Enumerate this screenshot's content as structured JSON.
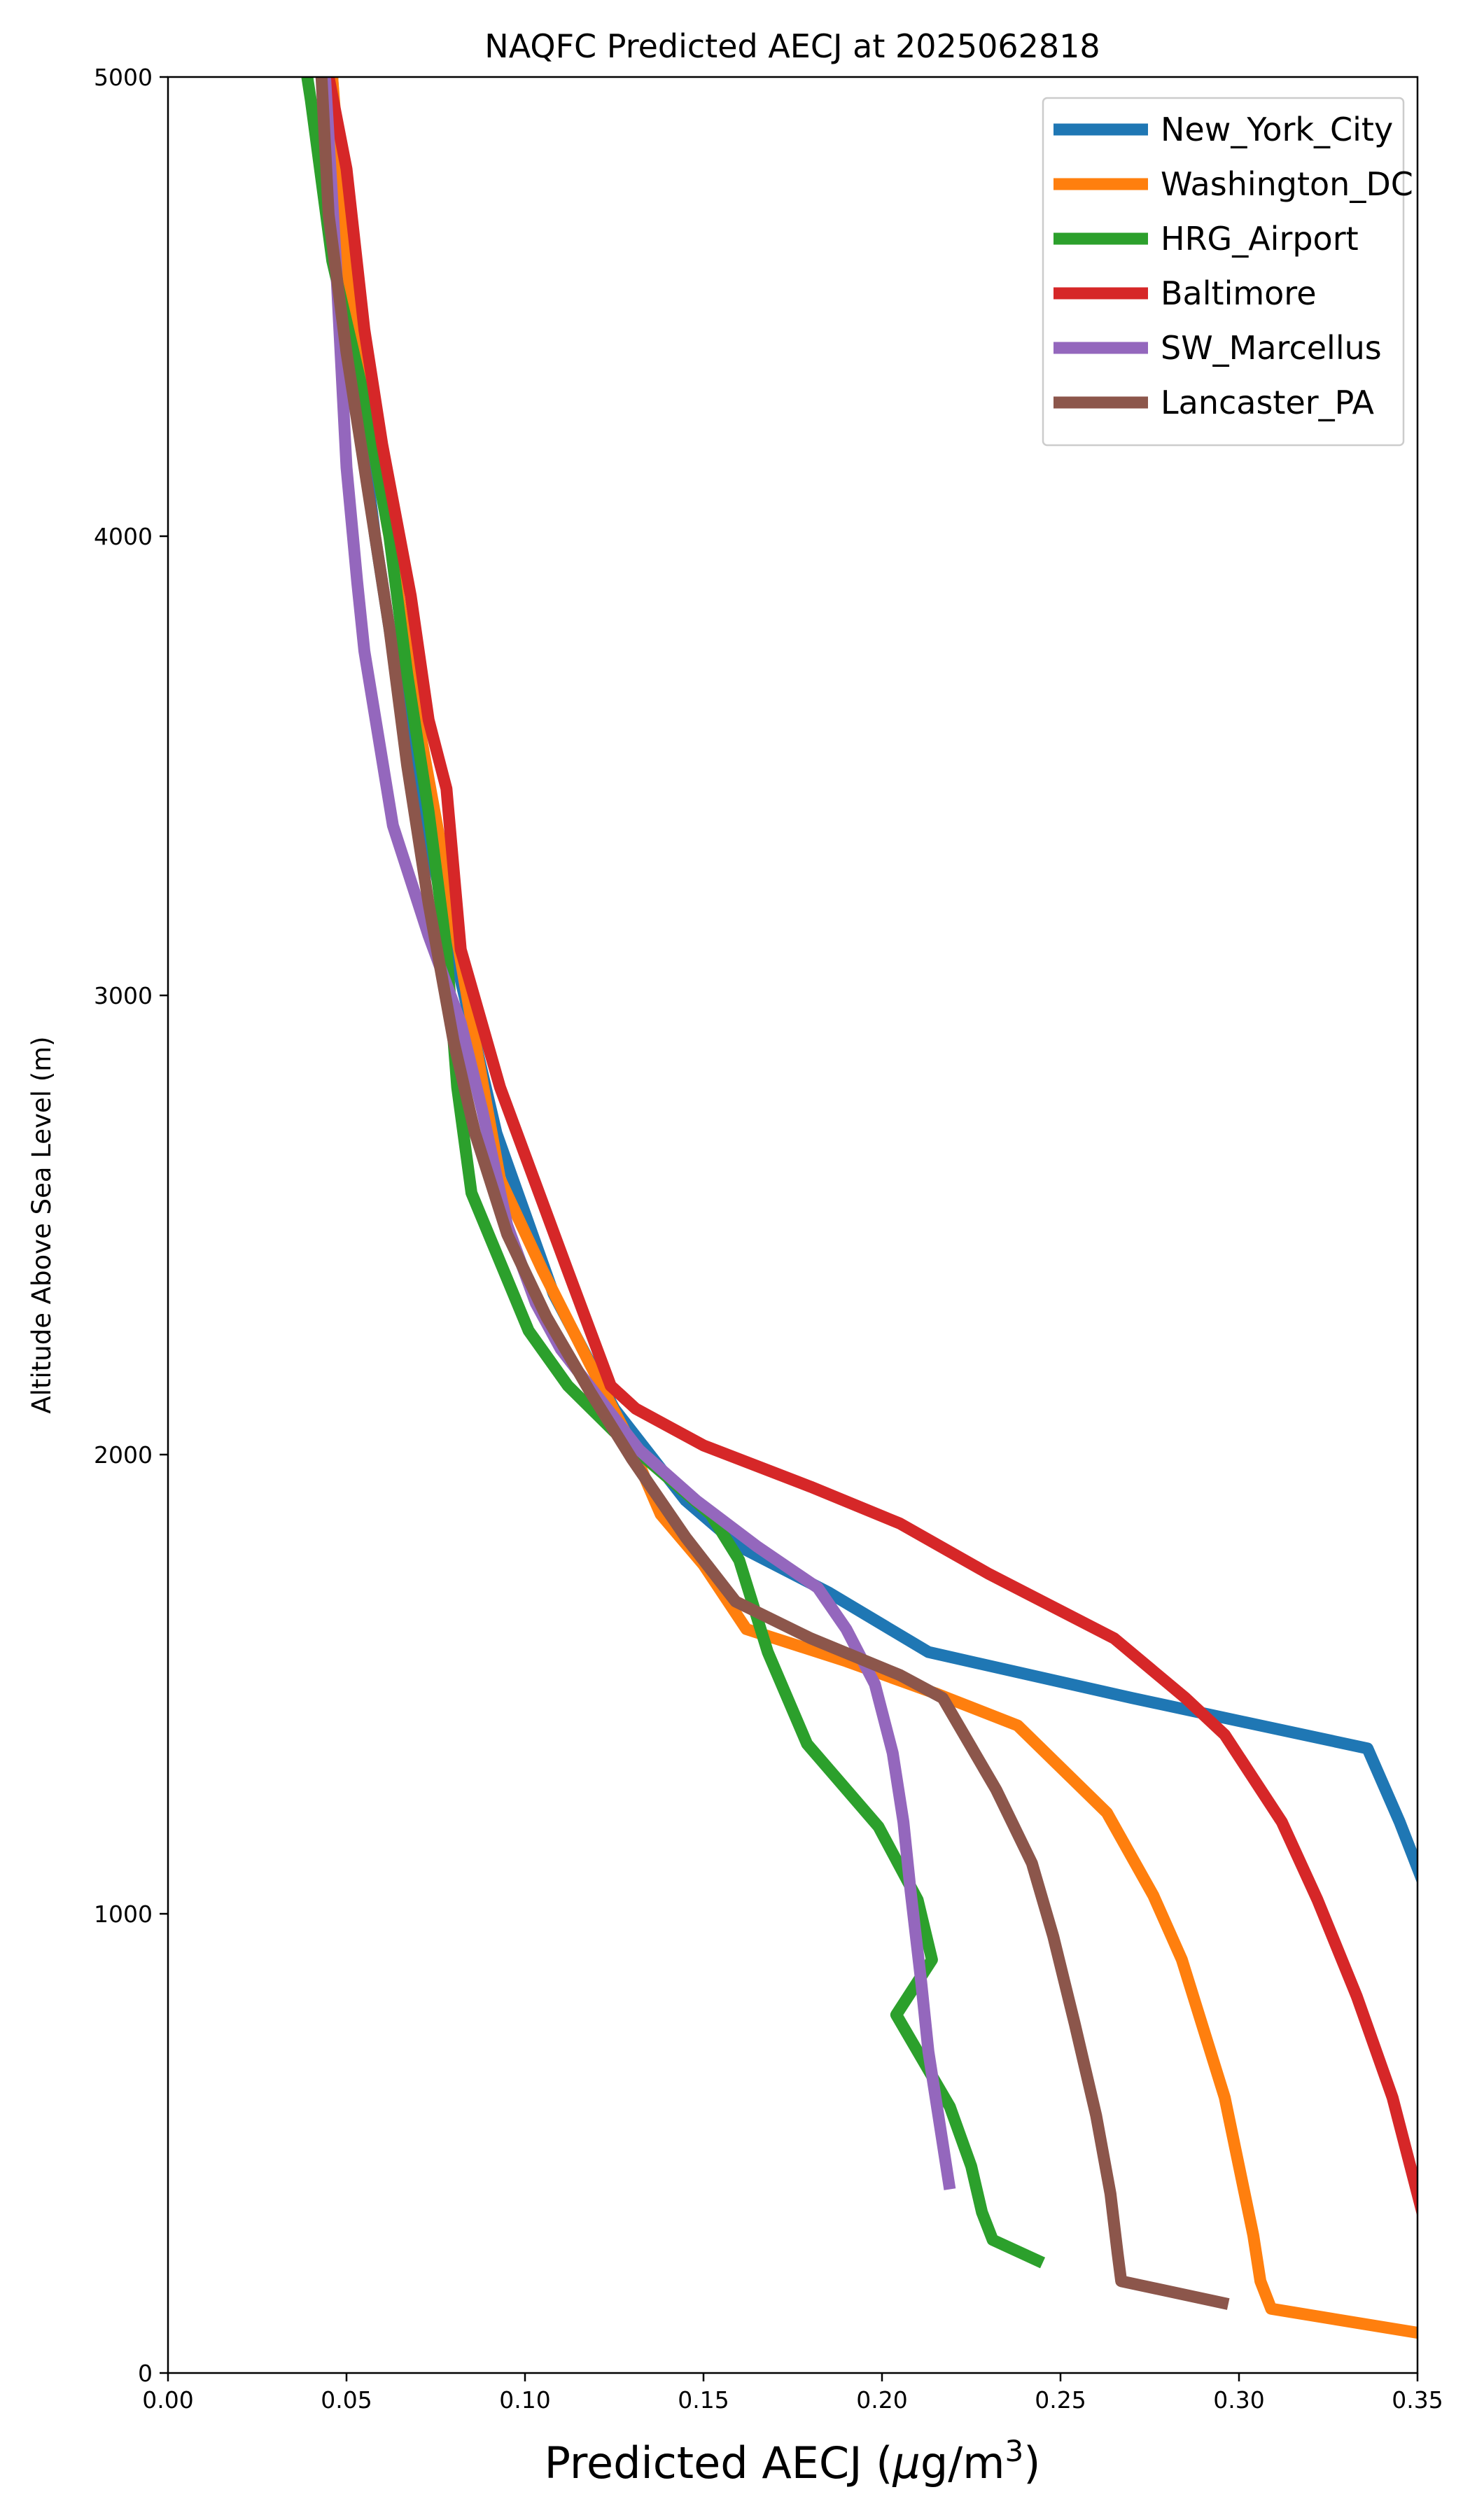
{
  "chart_data": {
    "type": "line",
    "title": "NAQFC Predicted AECJ at 2025062818",
    "xlabel": "Predicted AECJ (μg/m³)",
    "xlabel_base": "Predicted AECJ (",
    "xlabel_mu": "μ",
    "xlabel_unit": "g/m",
    "xlabel_sup": "3",
    "xlabel_close": ")",
    "ylabel": "Altitude Above Sea Level (m)",
    "xlim": [
      0,
      0.35
    ],
    "ylim": [
      0,
      5000
    ],
    "xticks": [
      0.0,
      0.05,
      0.1,
      0.15,
      0.2,
      0.25,
      0.3,
      0.35
    ],
    "xtick_labels": [
      "0.00",
      "0.05",
      "0.10",
      "0.15",
      "0.20",
      "0.25",
      "0.30",
      "0.35"
    ],
    "yticks": [
      0,
      1000,
      2000,
      3000,
      4000,
      5000
    ],
    "ytick_labels": [
      "0",
      "1000",
      "2000",
      "3000",
      "4000",
      "5000"
    ],
    "grid": false,
    "legend_position": "top-right",
    "series": [
      {
        "name": "New_York_City",
        "color": "#1f77b4",
        "points": [
          [
            0.046,
            5000
          ],
          [
            0.05,
            4500
          ],
          [
            0.058,
            4000
          ],
          [
            0.068,
            3500
          ],
          [
            0.08,
            3100
          ],
          [
            0.092,
            2700
          ],
          [
            0.108,
            2350
          ],
          [
            0.125,
            2100
          ],
          [
            0.145,
            1900
          ],
          [
            0.16,
            1800
          ],
          [
            0.185,
            1700
          ],
          [
            0.213,
            1570
          ],
          [
            0.27,
            1470
          ],
          [
            0.336,
            1360
          ],
          [
            0.345,
            1200
          ],
          [
            0.352,
            1060
          ]
        ]
      },
      {
        "name": "Washington_DC",
        "color": "#ff7f0e",
        "points": [
          [
            0.046,
            5000
          ],
          [
            0.05,
            4600
          ],
          [
            0.055,
            4300
          ],
          [
            0.062,
            4000
          ],
          [
            0.07,
            3600
          ],
          [
            0.077,
            3300
          ],
          [
            0.086,
            2900
          ],
          [
            0.093,
            2600
          ],
          [
            0.105,
            2400
          ],
          [
            0.118,
            2200
          ],
          [
            0.128,
            2050
          ],
          [
            0.138,
            1870
          ],
          [
            0.15,
            1760
          ],
          [
            0.162,
            1620
          ],
          [
            0.19,
            1550
          ],
          [
            0.215,
            1480
          ],
          [
            0.238,
            1410
          ],
          [
            0.263,
            1220
          ],
          [
            0.276,
            1040
          ],
          [
            0.284,
            900
          ],
          [
            0.29,
            750
          ],
          [
            0.296,
            600
          ],
          [
            0.3,
            450
          ],
          [
            0.304,
            300
          ],
          [
            0.306,
            200
          ],
          [
            0.309,
            140
          ],
          [
            0.352,
            85
          ]
        ]
      },
      {
        "name": "HRG_Airport",
        "color": "#2ca02c",
        "points": [
          [
            0.039,
            5000
          ],
          [
            0.04,
            4950
          ],
          [
            0.046,
            4600
          ],
          [
            0.055,
            4300
          ],
          [
            0.062,
            4000
          ],
          [
            0.067,
            3700
          ],
          [
            0.073,
            3400
          ],
          [
            0.078,
            3100
          ],
          [
            0.081,
            2800
          ],
          [
            0.085,
            2570
          ],
          [
            0.093,
            2420
          ],
          [
            0.101,
            2270
          ],
          [
            0.112,
            2150
          ],
          [
            0.125,
            2050
          ],
          [
            0.14,
            1950
          ],
          [
            0.152,
            1870
          ],
          [
            0.16,
            1770
          ],
          [
            0.168,
            1570
          ],
          [
            0.179,
            1370
          ],
          [
            0.199,
            1190
          ],
          [
            0.21,
            1030
          ],
          [
            0.214,
            900
          ],
          [
            0.204,
            780
          ],
          [
            0.219,
            580
          ],
          [
            0.225,
            450
          ],
          [
            0.228,
            350
          ],
          [
            0.231,
            290
          ],
          [
            0.245,
            240
          ]
        ]
      },
      {
        "name": "Baltimore",
        "color": "#d62728",
        "points": [
          [
            0.045,
            5000
          ],
          [
            0.05,
            4800
          ],
          [
            0.055,
            4450
          ],
          [
            0.06,
            4200
          ],
          [
            0.068,
            3870
          ],
          [
            0.073,
            3600
          ],
          [
            0.078,
            3450
          ],
          [
            0.082,
            3100
          ],
          [
            0.093,
            2800
          ],
          [
            0.112,
            2400
          ],
          [
            0.124,
            2150
          ],
          [
            0.131,
            2100
          ],
          [
            0.15,
            2020
          ],
          [
            0.18,
            1930
          ],
          [
            0.205,
            1850
          ],
          [
            0.23,
            1740
          ],
          [
            0.265,
            1600
          ],
          [
            0.285,
            1470
          ],
          [
            0.296,
            1390
          ],
          [
            0.312,
            1200
          ],
          [
            0.322,
            1030
          ],
          [
            0.333,
            820
          ],
          [
            0.343,
            600
          ],
          [
            0.352,
            330
          ]
        ]
      },
      {
        "name": "SW_Marcellus",
        "color": "#9467bd",
        "points": [
          [
            0.044,
            5000
          ],
          [
            0.047,
            4600
          ],
          [
            0.05,
            4150
          ],
          [
            0.053,
            3900
          ],
          [
            0.055,
            3750
          ],
          [
            0.063,
            3370
          ],
          [
            0.073,
            3130
          ],
          [
            0.082,
            2940
          ],
          [
            0.088,
            2750
          ],
          [
            0.095,
            2500
          ],
          [
            0.103,
            2330
          ],
          [
            0.11,
            2230
          ],
          [
            0.12,
            2130
          ],
          [
            0.132,
            2010
          ],
          [
            0.148,
            1900
          ],
          [
            0.165,
            1800
          ],
          [
            0.182,
            1710
          ],
          [
            0.19,
            1620
          ],
          [
            0.198,
            1500
          ],
          [
            0.203,
            1350
          ],
          [
            0.206,
            1200
          ],
          [
            0.208,
            1050
          ],
          [
            0.211,
            850
          ],
          [
            0.213,
            700
          ],
          [
            0.215,
            600
          ],
          [
            0.219,
            400
          ]
        ]
      },
      {
        "name": "Lancaster_PA",
        "color": "#8c564b",
        "points": [
          [
            0.043,
            5000
          ],
          [
            0.045,
            4700
          ],
          [
            0.05,
            4400
          ],
          [
            0.056,
            4100
          ],
          [
            0.062,
            3800
          ],
          [
            0.067,
            3500
          ],
          [
            0.073,
            3200
          ],
          [
            0.08,
            2900
          ],
          [
            0.086,
            2700
          ],
          [
            0.095,
            2480
          ],
          [
            0.106,
            2300
          ],
          [
            0.118,
            2140
          ],
          [
            0.13,
            1990
          ],
          [
            0.145,
            1820
          ],
          [
            0.159,
            1680
          ],
          [
            0.18,
            1600
          ],
          [
            0.205,
            1520
          ],
          [
            0.217,
            1470
          ],
          [
            0.232,
            1270
          ],
          [
            0.242,
            1110
          ],
          [
            0.248,
            950
          ],
          [
            0.254,
            760
          ],
          [
            0.26,
            560
          ],
          [
            0.264,
            390
          ],
          [
            0.266,
            260
          ],
          [
            0.267,
            200
          ],
          [
            0.297,
            150
          ]
        ]
      }
    ]
  }
}
